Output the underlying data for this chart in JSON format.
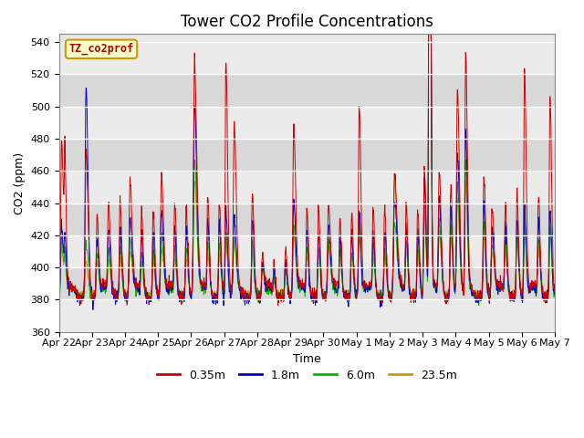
{
  "title": "Tower CO2 Profile Concentrations",
  "xlabel": "Time",
  "ylabel": "CO2 (ppm)",
  "ylim": [
    360,
    545
  ],
  "yticks": [
    360,
    380,
    400,
    420,
    440,
    460,
    480,
    500,
    520,
    540
  ],
  "series_labels": [
    "0.35m",
    "1.8m",
    "6.0m",
    "23.5m"
  ],
  "series_colors": [
    "#cc0000",
    "#0000cc",
    "#00bb00",
    "#cc9900"
  ],
  "legend_label": "TZ_co2prof",
  "legend_bg": "#ffffcc",
  "legend_edge": "#cc9900",
  "bg_color": "#e8e8e8",
  "n_points": 1500,
  "x_start": 0,
  "x_end": 15,
  "xtick_positions": [
    0,
    1,
    2,
    3,
    4,
    5,
    6,
    7,
    8,
    9,
    10,
    11,
    12,
    13,
    14,
    15
  ],
  "xtick_labels": [
    "Apr 22",
    "Apr 23",
    "Apr 24",
    "Apr 25",
    "Apr 26",
    "Apr 27",
    "Apr 28",
    "Apr 29",
    "Apr 30",
    "May 1",
    "May 2",
    "May 3",
    "May 4",
    "May 5",
    "May 6",
    "May 7"
  ],
  "title_fontsize": 12,
  "axis_fontsize": 9,
  "tick_fontsize": 8
}
